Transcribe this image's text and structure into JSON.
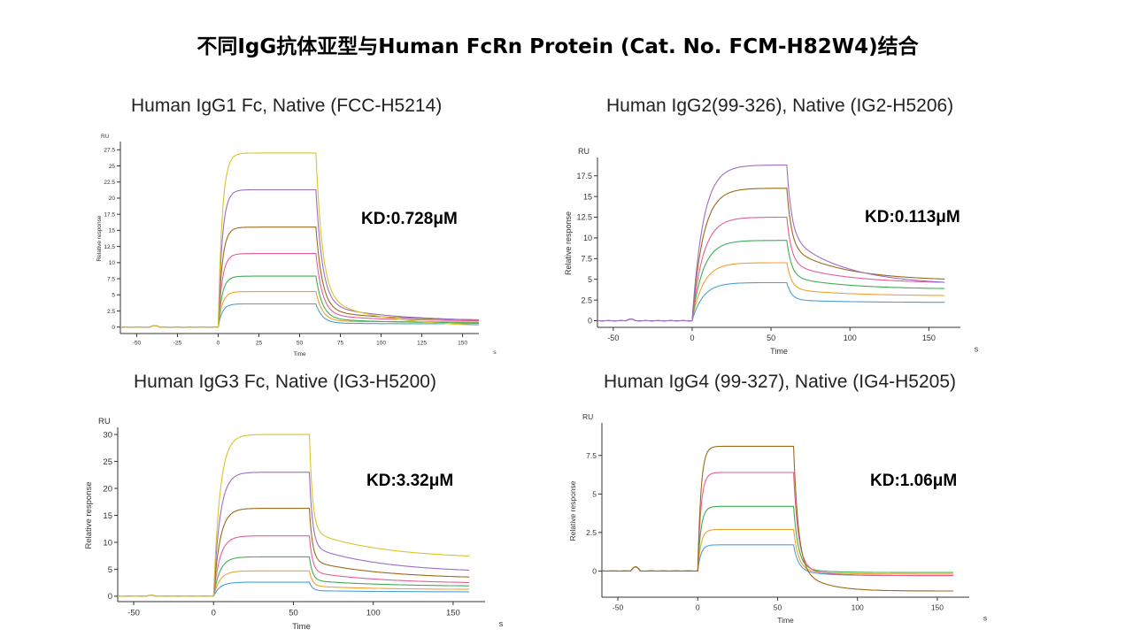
{
  "page": {
    "title": "不同IgG抗体亚型与Human FcRn Protein (Cat. No. FCM-H82W4)结合"
  },
  "colors": {
    "axis": "#333333",
    "series": [
      "#4e9fd8",
      "#f0a230",
      "#3fae55",
      "#e45f96",
      "#9c6a1a",
      "#9b6ec4",
      "#d9c52a"
    ]
  },
  "panels": [
    {
      "title": "Human IgG1 Fc, Native (FCC-H5214)",
      "kd": "KD:0.728μM",
      "ylabel": "Relative response",
      "unit_y": "RU",
      "xlabel": "Time",
      "unit_x": "s",
      "xlim": [
        -60,
        160
      ],
      "ylim": [
        -1,
        28.5
      ],
      "xticks": [
        -50,
        -25,
        0,
        25,
        50,
        75,
        100,
        125,
        150
      ],
      "xtick_labels": [
        "-50",
        "-25",
        "0",
        "25",
        "50",
        "75",
        "100",
        "125",
        "150"
      ],
      "yticks": [
        0,
        2.5,
        5,
        7.5,
        10,
        12.5,
        15,
        17.5,
        20,
        22.5,
        25,
        27.5
      ],
      "ytick_labels": [
        "0",
        "2.5",
        "5",
        "7.5",
        "10",
        "12.5",
        "15",
        "17.5",
        "20",
        "22.5",
        "25",
        "27.5"
      ],
      "series_colors": [
        "#4e9fd8",
        "#f0a230",
        "#3fae55",
        "#e45f96",
        "#9c6a1a",
        "#9b6ec4",
        "#d9c52a"
      ],
      "series_peaks": [
        3.6,
        5.5,
        7.9,
        11.4,
        15.5,
        21.3,
        27.0
      ],
      "series_ends": [
        0.5,
        0.8,
        0.6,
        0.9,
        1.0,
        0.9,
        -0.1
      ]
    },
    {
      "title": "Human IgG2(99-326), Native (IG2-H5206)",
      "kd": "KD:0.113μM",
      "ylabel": "Relative response",
      "unit_y": "RU",
      "xlabel": "Time",
      "unit_x": "s",
      "xlim": [
        -60,
        170
      ],
      "ylim": [
        -0.8,
        19.5
      ],
      "xticks": [
        -50,
        0,
        50,
        100,
        150
      ],
      "xtick_labels": [
        "-50",
        "0",
        "50",
        "100",
        "150"
      ],
      "yticks": [
        0,
        2.5,
        5,
        7.5,
        10,
        12.5,
        15,
        17.5
      ],
      "ytick_labels": [
        "0",
        "2.5",
        "5",
        "7.5",
        "10",
        "12.5",
        "15",
        "17.5"
      ],
      "series_colors": [
        "#4e9fd8",
        "#f0a230",
        "#3fae55",
        "#e45f96",
        "#9c6a1a",
        "#9b6ec4"
      ],
      "series_peaks": [
        4.6,
        7.0,
        9.7,
        12.5,
        16.0,
        18.8
      ],
      "series_ends": [
        2.2,
        3.0,
        3.8,
        4.5,
        4.8,
        4.3
      ]
    },
    {
      "title": "Human IgG3 Fc, Native (IG3-H5200)",
      "kd": "KD:3.32μM",
      "ylabel": "Relative response",
      "unit_y": "RU",
      "xlabel": "Time",
      "unit_x": "s",
      "xlim": [
        -60,
        170
      ],
      "ylim": [
        -1,
        31
      ],
      "xticks": [
        -50,
        0,
        50,
        100,
        150
      ],
      "xtick_labels": [
        "-50",
        "0",
        "50",
        "100",
        "150"
      ],
      "yticks": [
        0,
        5,
        10,
        15,
        20,
        25,
        30
      ],
      "ytick_labels": [
        "0",
        "5",
        "10",
        "15",
        "20",
        "25",
        "30"
      ],
      "series_colors": [
        "#4e9fd8",
        "#f0a230",
        "#3fae55",
        "#e45f96",
        "#9c6a1a",
        "#9b6ec4",
        "#d9c52a"
      ],
      "series_peaks": [
        2.6,
        4.7,
        7.3,
        11.2,
        16.3,
        23.0,
        30.0
      ],
      "series_ends": [
        0.8,
        1.2,
        1.8,
        2.3,
        3.2,
        4.3,
        6.9
      ]
    },
    {
      "title": "Human IgG4 (99-327), Native (IG4-H5205)",
      "kd": "KD:1.06μM",
      "ylabel": "Relative response",
      "unit_y": "RU",
      "xlabel": "Time",
      "unit_x": "s",
      "xlim": [
        -60,
        170
      ],
      "ylim": [
        -1.7,
        9.5
      ],
      "xticks": [
        -50,
        0,
        50,
        100,
        150
      ],
      "xtick_labels": [
        "-50",
        "0",
        "50",
        "100",
        "150"
      ],
      "yticks": [
        0,
        2.5,
        5,
        7.5
      ],
      "ytick_labels": [
        "0",
        "2.5",
        "5",
        "7.5"
      ],
      "series_colors": [
        "#4e9fd8",
        "#f0a230",
        "#3fae55",
        "#e45f96",
        "#9c6a1a"
      ],
      "series_peaks": [
        1.7,
        2.7,
        4.2,
        6.4,
        8.1
      ],
      "series_ends": [
        -0.3,
        -0.2,
        -0.1,
        -0.3,
        -1.3
      ]
    }
  ],
  "chart_data": [
    {
      "type": "line",
      "title": "Human IgG1 Fc, Native (FCC-H5214)",
      "xlabel": "Time",
      "ylabel": "Relative response",
      "x_unit": "s",
      "y_unit": "RU",
      "xlim": [
        -60,
        160
      ],
      "ylim": [
        -1,
        28.5
      ],
      "grid": false,
      "annotation": "KD:0.728μM",
      "association_start": 0,
      "dissociation_start": 60,
      "series": [
        {
          "color": "#4e9fd8",
          "peak": 3.6,
          "end": 0.5
        },
        {
          "color": "#f0a230",
          "peak": 5.5,
          "end": 0.8
        },
        {
          "color": "#3fae55",
          "peak": 7.9,
          "end": 0.6
        },
        {
          "color": "#e45f96",
          "peak": 11.4,
          "end": 0.9
        },
        {
          "color": "#9c6a1a",
          "peak": 15.5,
          "end": 1.0
        },
        {
          "color": "#9b6ec4",
          "peak": 21.3,
          "end": 0.9
        },
        {
          "color": "#d9c52a",
          "peak": 27.0,
          "end": -0.1
        }
      ]
    },
    {
      "type": "line",
      "title": "Human IgG2(99-326), Native (IG2-H5206)",
      "xlabel": "Time",
      "ylabel": "Relative response",
      "x_unit": "s",
      "y_unit": "RU",
      "xlim": [
        -60,
        170
      ],
      "ylim": [
        -0.8,
        19.5
      ],
      "grid": false,
      "annotation": "KD:0.113μM",
      "association_start": 0,
      "dissociation_start": 60,
      "series": [
        {
          "color": "#4e9fd8",
          "peak": 4.6,
          "end": 2.2
        },
        {
          "color": "#f0a230",
          "peak": 7.0,
          "end": 3.0
        },
        {
          "color": "#3fae55",
          "peak": 9.7,
          "end": 3.8
        },
        {
          "color": "#e45f96",
          "peak": 12.5,
          "end": 4.5
        },
        {
          "color": "#9c6a1a",
          "peak": 16.0,
          "end": 4.8
        },
        {
          "color": "#9b6ec4",
          "peak": 18.8,
          "end": 4.3
        }
      ]
    },
    {
      "type": "line",
      "title": "Human IgG3 Fc, Native (IG3-H5200)",
      "xlabel": "Time",
      "ylabel": "Relative response",
      "x_unit": "s",
      "y_unit": "RU",
      "xlim": [
        -60,
        170
      ],
      "ylim": [
        -1,
        31
      ],
      "grid": false,
      "annotation": "KD:3.32μM",
      "association_start": 0,
      "dissociation_start": 60,
      "series": [
        {
          "color": "#4e9fd8",
          "peak": 2.6,
          "end": 0.8
        },
        {
          "color": "#f0a230",
          "peak": 4.7,
          "end": 1.2
        },
        {
          "color": "#3fae55",
          "peak": 7.3,
          "end": 1.8
        },
        {
          "color": "#e45f96",
          "peak": 11.2,
          "end": 2.3
        },
        {
          "color": "#9c6a1a",
          "peak": 16.3,
          "end": 3.2
        },
        {
          "color": "#9b6ec4",
          "peak": 23.0,
          "end": 4.3
        },
        {
          "color": "#d9c52a",
          "peak": 30.0,
          "end": 6.9
        }
      ]
    },
    {
      "type": "line",
      "title": "Human IgG4 (99-327), Native (IG4-H5205)",
      "xlabel": "Time",
      "ylabel": "Relative response",
      "x_unit": "s",
      "y_unit": "RU",
      "xlim": [
        -60,
        170
      ],
      "ylim": [
        -1.7,
        9.5
      ],
      "grid": false,
      "annotation": "KD:1.06μM",
      "association_start": 0,
      "dissociation_start": 60,
      "series": [
        {
          "color": "#4e9fd8",
          "peak": 1.7,
          "end": -0.3
        },
        {
          "color": "#f0a230",
          "peak": 2.7,
          "end": -0.2
        },
        {
          "color": "#3fae55",
          "peak": 4.2,
          "end": -0.1
        },
        {
          "color": "#e45f96",
          "peak": 6.4,
          "end": -0.3
        },
        {
          "color": "#9c6a1a",
          "peak": 8.1,
          "end": -1.3
        }
      ]
    }
  ]
}
